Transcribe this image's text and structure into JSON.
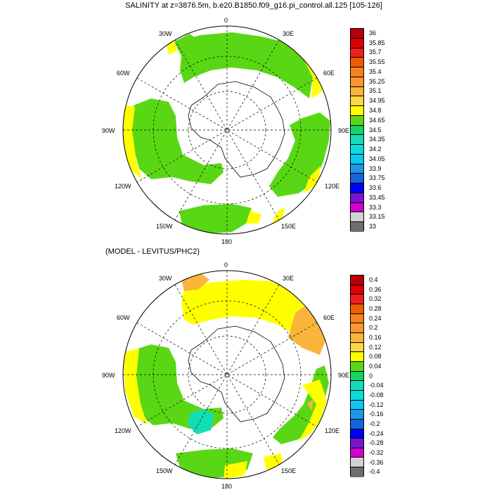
{
  "figure": {
    "title_top": "SALINITY at z=3876.5m, b.e20.B1850.f09_g16.pi_control.all.125 [105-126]",
    "title_bottom": "(MODEL - LEVITUS/PHC2)"
  },
  "map_labels": {
    "lon_0": "0",
    "lon_30e": "30E",
    "lon_60e": "60E",
    "lon_90e": "90E",
    "lon_120e": "120E",
    "lon_150e": "150E",
    "lon_180": "180",
    "lon_150w": "150W",
    "lon_120w": "120W",
    "lon_90w": "90W",
    "lon_60w": "60W",
    "lon_30w": "30W"
  },
  "colorbar_top": {
    "labels": [
      "36",
      "35.85",
      "35.7",
      "35.55",
      "35.4",
      "35.25",
      "35.1",
      "34.95",
      "34.8",
      "34.65",
      "34.5",
      "34.35",
      "34.2",
      "34.05",
      "33.9",
      "33.75",
      "33.6",
      "33.45",
      "33.3",
      "33.15",
      "33"
    ],
    "colors": [
      "#b4000a",
      "#dc0000",
      "#f01e1e",
      "#f05a00",
      "#f5821e",
      "#fa9632",
      "#fab43c",
      "#ffd746",
      "#ffff00",
      "#5ad714",
      "#14d264",
      "#14dcb4",
      "#0adcdc",
      "#0ac8f0",
      "#1e96e6",
      "#1464dc",
      "#0000f5",
      "#7814d2",
      "#d200d2",
      "#d2d2d2",
      "#6e6e6e"
    ]
  },
  "colorbar_bottom": {
    "labels": [
      "0.4",
      "0.36",
      "0.32",
      "0.28",
      "0.24",
      "0.2",
      "0.16",
      "0.12",
      "0.08",
      "0.04",
      "0",
      "-0.04",
      "-0.08",
      "-0.12",
      "-0.16",
      "-0.2",
      "-0.24",
      "-0.28",
      "-0.32",
      "-0.36",
      "-0.4"
    ],
    "colors": [
      "#b4000a",
      "#dc0000",
      "#f01e1e",
      "#f05a00",
      "#f5821e",
      "#fa9632",
      "#fab43c",
      "#ffd746",
      "#ffff00",
      "#5ad714",
      "#14d264",
      "#14dcb4",
      "#0adcdc",
      "#0ac8f0",
      "#1e96e6",
      "#1464dc",
      "#0000f5",
      "#7814d2",
      "#d200d2",
      "#d2d2d2",
      "#6e6e6e"
    ]
  }
}
